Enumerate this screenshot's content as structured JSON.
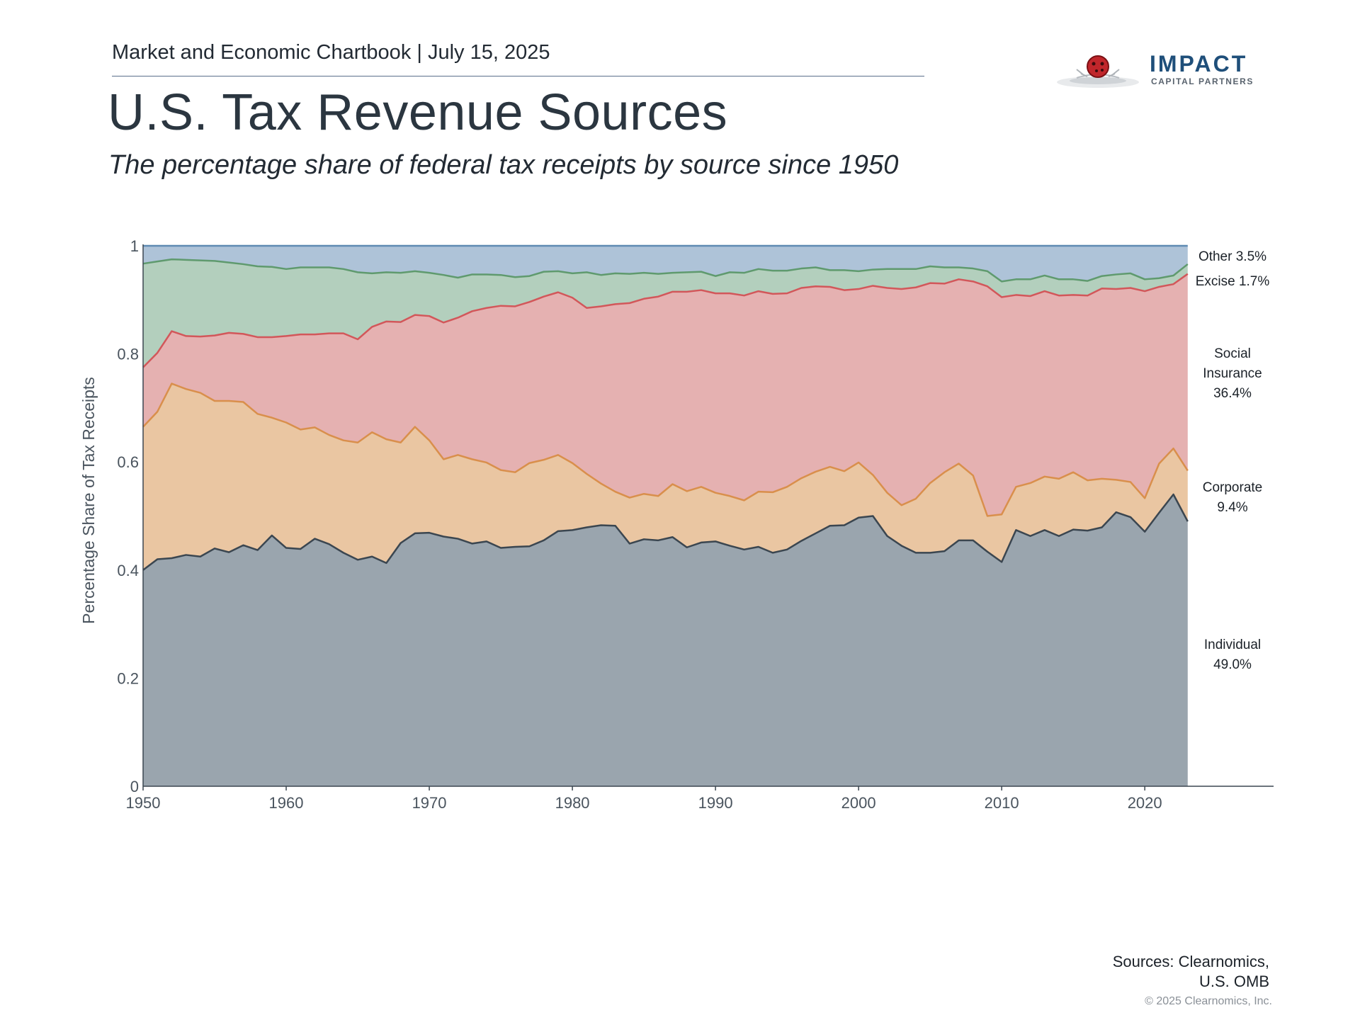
{
  "header": {
    "chartbook": "Market and Economic Chartbook | July 15, 2025",
    "title": "U.S. Tax Revenue Sources",
    "subtitle": "The percentage share of federal tax receipts by source since 1950"
  },
  "logo": {
    "name": "IMPACT",
    "tagline": "CAPITAL PARTNERS"
  },
  "footer": {
    "sources_line1": "Sources: Clearnomics,",
    "sources_line2": "U.S. OMB",
    "copyright": "© 2025 Clearnomics, Inc."
  },
  "colors": {
    "individual": "#9aa5ae",
    "individual_line": "#3b4650",
    "corporate": "#eac6a2",
    "corporate_line": "#d98f4c",
    "social": "#e5b1b1",
    "social_line": "#d2575a",
    "excise": "#b3cfbd",
    "excise_line": "#5f9a6e",
    "other": "#aec3d8",
    "other_line": "#5f8bb3"
  },
  "chart_data": {
    "type": "area",
    "stacked": true,
    "ylabel": "Percentage Share of Tax Receipts",
    "xlabel": "",
    "xlim": [
      1950,
      2029
    ],
    "ylim": [
      0,
      1
    ],
    "x_ticks": [
      "1950",
      "1960",
      "1970",
      "1980",
      "1990",
      "2000",
      "2010",
      "2020"
    ],
    "y_ticks": [
      "0",
      "0.2",
      "0.4",
      "0.6",
      "0.8",
      "1"
    ],
    "x": [
      1950,
      1951,
      1952,
      1953,
      1954,
      1955,
      1956,
      1957,
      1958,
      1959,
      1960,
      1961,
      1962,
      1963,
      1964,
      1965,
      1966,
      1967,
      1968,
      1969,
      1970,
      1971,
      1972,
      1973,
      1974,
      1975,
      1976,
      1977,
      1978,
      1979,
      1980,
      1981,
      1982,
      1983,
      1984,
      1985,
      1986,
      1987,
      1988,
      1989,
      1990,
      1991,
      1992,
      1993,
      1994,
      1995,
      1996,
      1997,
      1998,
      1999,
      2000,
      2001,
      2002,
      2003,
      2004,
      2005,
      2006,
      2007,
      2008,
      2009,
      2010,
      2011,
      2012,
      2013,
      2014,
      2015,
      2016,
      2017,
      2018,
      2019,
      2020,
      2021,
      2022,
      2023
    ],
    "cumulative_series": [
      {
        "name": "Individual",
        "label_value": "49.0%",
        "top": [
          0.4,
          0.42,
          0.422,
          0.428,
          0.425,
          0.44,
          0.433,
          0.446,
          0.437,
          0.464,
          0.441,
          0.439,
          0.458,
          0.448,
          0.432,
          0.419,
          0.425,
          0.413,
          0.45,
          0.468,
          0.469,
          0.462,
          0.458,
          0.449,
          0.453,
          0.441,
          0.443,
          0.444,
          0.455,
          0.472,
          0.474,
          0.479,
          0.483,
          0.482,
          0.449,
          0.457,
          0.455,
          0.461,
          0.442,
          0.451,
          0.453,
          0.445,
          0.438,
          0.443,
          0.432,
          0.438,
          0.454,
          0.468,
          0.482,
          0.483,
          0.497,
          0.5,
          0.463,
          0.445,
          0.432,
          0.432,
          0.435,
          0.455,
          0.455,
          0.434,
          0.415,
          0.474,
          0.463,
          0.474,
          0.463,
          0.475,
          0.473,
          0.479,
          0.507,
          0.498,
          0.471,
          0.506,
          0.54,
          0.49
        ]
      },
      {
        "name": "Corporate",
        "label_value": "9.4%",
        "top": [
          0.665,
          0.693,
          0.745,
          0.735,
          0.728,
          0.713,
          0.713,
          0.711,
          0.689,
          0.682,
          0.673,
          0.66,
          0.664,
          0.65,
          0.64,
          0.636,
          0.655,
          0.642,
          0.636,
          0.665,
          0.64,
          0.605,
          0.613,
          0.605,
          0.599,
          0.585,
          0.581,
          0.598,
          0.604,
          0.613,
          0.598,
          0.578,
          0.56,
          0.545,
          0.534,
          0.541,
          0.537,
          0.559,
          0.546,
          0.554,
          0.543,
          0.537,
          0.529,
          0.545,
          0.544,
          0.554,
          0.57,
          0.582,
          0.591,
          0.583,
          0.599,
          0.576,
          0.543,
          0.52,
          0.532,
          0.561,
          0.581,
          0.597,
          0.575,
          0.5,
          0.503,
          0.554,
          0.561,
          0.573,
          0.569,
          0.581,
          0.566,
          0.569,
          0.567,
          0.563,
          0.533,
          0.597,
          0.625,
          0.584
        ]
      },
      {
        "name": "Social Insurance",
        "label_value": "36.4%",
        "top": [
          0.775,
          0.802,
          0.842,
          0.833,
          0.832,
          0.834,
          0.839,
          0.837,
          0.831,
          0.831,
          0.833,
          0.836,
          0.836,
          0.838,
          0.838,
          0.827,
          0.85,
          0.86,
          0.859,
          0.872,
          0.87,
          0.858,
          0.867,
          0.879,
          0.885,
          0.889,
          0.888,
          0.896,
          0.906,
          0.914,
          0.904,
          0.885,
          0.888,
          0.892,
          0.894,
          0.902,
          0.906,
          0.915,
          0.915,
          0.918,
          0.912,
          0.912,
          0.908,
          0.916,
          0.911,
          0.912,
          0.922,
          0.925,
          0.924,
          0.918,
          0.92,
          0.926,
          0.922,
          0.92,
          0.923,
          0.931,
          0.93,
          0.938,
          0.934,
          0.925,
          0.905,
          0.909,
          0.907,
          0.916,
          0.908,
          0.909,
          0.908,
          0.921,
          0.92,
          0.922,
          0.916,
          0.924,
          0.929,
          0.948
        ]
      },
      {
        "name": "Excise",
        "label_value": "1.7%",
        "top": [
          0.967,
          0.971,
          0.975,
          0.974,
          0.973,
          0.972,
          0.969,
          0.966,
          0.962,
          0.961,
          0.957,
          0.96,
          0.96,
          0.96,
          0.957,
          0.951,
          0.949,
          0.951,
          0.95,
          0.953,
          0.95,
          0.946,
          0.941,
          0.947,
          0.947,
          0.946,
          0.942,
          0.944,
          0.952,
          0.953,
          0.949,
          0.951,
          0.946,
          0.949,
          0.948,
          0.95,
          0.948,
          0.95,
          0.951,
          0.952,
          0.944,
          0.951,
          0.95,
          0.957,
          0.954,
          0.954,
          0.958,
          0.96,
          0.955,
          0.955,
          0.953,
          0.956,
          0.957,
          0.957,
          0.957,
          0.962,
          0.96,
          0.96,
          0.958,
          0.953,
          0.934,
          0.938,
          0.938,
          0.945,
          0.938,
          0.938,
          0.935,
          0.944,
          0.947,
          0.949,
          0.938,
          0.94,
          0.945,
          0.966
        ]
      },
      {
        "name": "Other",
        "label_value": "3.5%",
        "top": [
          1,
          1,
          1,
          1,
          1,
          1,
          1,
          1,
          1,
          1,
          1,
          1,
          1,
          1,
          1,
          1,
          1,
          1,
          1,
          1,
          1,
          1,
          1,
          1,
          1,
          1,
          1,
          1,
          1,
          1,
          1,
          1,
          1,
          1,
          1,
          1,
          1,
          1,
          1,
          1,
          1,
          1,
          1,
          1,
          1,
          1,
          1,
          1,
          1,
          1,
          1,
          1,
          1,
          1,
          1,
          1,
          1,
          1,
          1,
          1,
          1,
          1,
          1,
          1,
          1,
          1,
          1,
          1,
          1,
          1,
          1,
          1,
          1,
          1
        ]
      }
    ]
  }
}
